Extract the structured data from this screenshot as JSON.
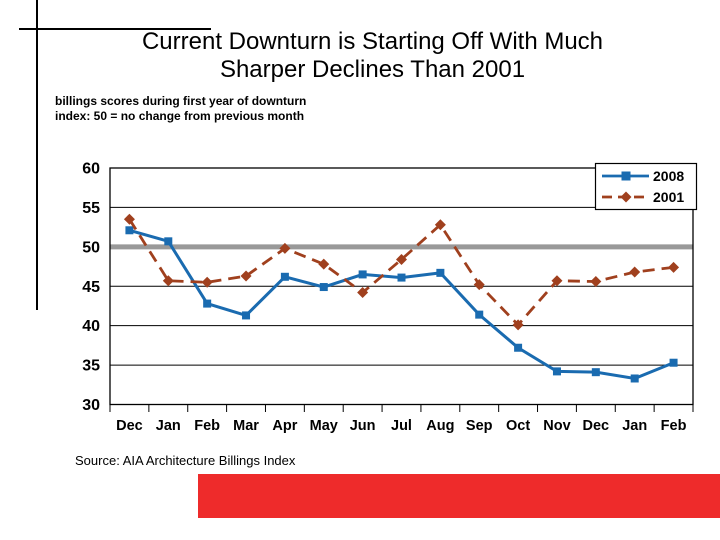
{
  "slide": {
    "title_line1": "Current Downturn is Starting Off With Much",
    "title_line2": "Sharper Declines Than 2001",
    "subtitle_line1": "billings scores during first year of downturn",
    "subtitle_line2": "index: 50 = no change from previous month",
    "source": "Source: AIA Architecture Billings Index",
    "accent_bar_color": "#EE2B2B"
  },
  "chart_data": {
    "type": "line",
    "title": "",
    "xlabel": "",
    "ylabel": "",
    "categories": [
      "Dec",
      "Jan",
      "Feb",
      "Mar",
      "Apr",
      "May",
      "Jun",
      "Jul",
      "Aug",
      "Sep",
      "Oct",
      "Nov",
      "Dec",
      "Jan",
      "Feb"
    ],
    "series": [
      {
        "name": "2008",
        "color": "#1A6BB0",
        "marker": "square",
        "line_style": "solid",
        "values": [
          52.1,
          50.7,
          42.8,
          41.3,
          46.2,
          44.9,
          46.5,
          46.1,
          46.7,
          41.4,
          37.2,
          34.2,
          34.1,
          33.3,
          35.3
        ]
      },
      {
        "name": "2001",
        "color": "#A0401E",
        "marker": "diamond",
        "line_style": "dashed",
        "values": [
          53.5,
          45.7,
          45.5,
          46.3,
          49.8,
          47.8,
          44.2,
          48.4,
          52.8,
          45.2,
          40.1,
          45.7,
          45.6,
          46.8,
          47.4
        ]
      }
    ],
    "ylim": [
      30,
      60
    ],
    "ytick_step": 5,
    "reference_line": {
      "value": 50,
      "color": "#999999",
      "width": 5
    },
    "grid": true,
    "legend_position": "top-right",
    "axis_label_color": "#000000"
  }
}
